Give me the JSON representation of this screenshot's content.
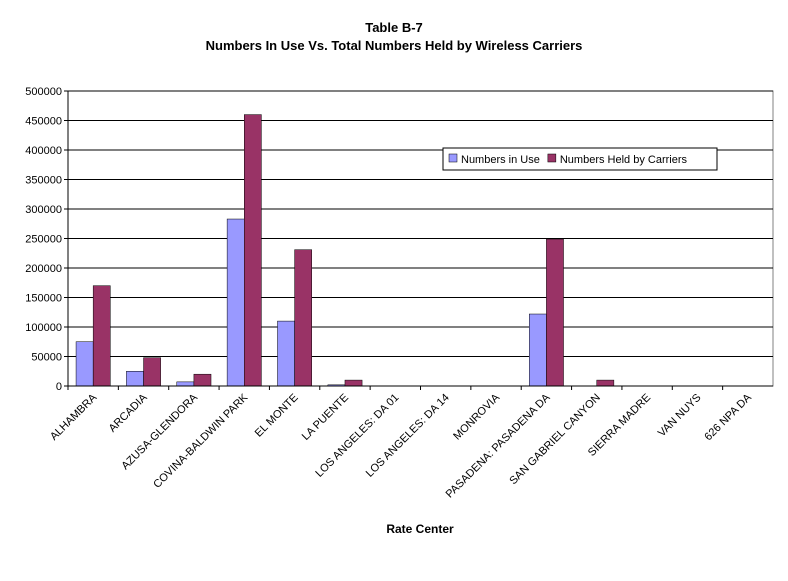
{
  "chart_data": {
    "type": "bar",
    "title": "Table B-7",
    "subtitle": "Numbers In Use Vs. Total Numbers Held by Wireless Carriers",
    "x_label": "Rate Center",
    "categories": [
      "ALHAMBRA",
      "ARCADIA",
      "AZUSA-GLENDORA",
      "COVINA-BALDWIN PARK",
      "EL MONTE",
      "LA PUENTE",
      "LOS ANGELES: DA 01",
      "LOS ANGELES: DA 14",
      "MONROVIA",
      "PASADENA: PASADENA DA",
      "SAN GABRIEL CANYON",
      "SIERRA MADRE",
      "VAN NUYS",
      "626 NPA DA"
    ],
    "series": [
      {
        "name": "Numbers in Use",
        "color": "#9999ff",
        "values": [
          75000,
          25000,
          7000,
          283000,
          110000,
          2000,
          0,
          0,
          0,
          122000,
          0,
          0,
          0,
          0
        ]
      },
      {
        "name": "Numbers Held by Carriers",
        "color": "#993366",
        "values": [
          170000,
          48000,
          20000,
          460000,
          231000,
          10000,
          0,
          0,
          0,
          249000,
          10000,
          0,
          0,
          0
        ]
      }
    ],
    "ylim": [
      0,
      500000
    ],
    "yticks": [
      0,
      50000,
      100000,
      150000,
      200000,
      250000,
      300000,
      350000,
      400000,
      450000,
      500000
    ],
    "grid": true,
    "legend": "upper right"
  }
}
